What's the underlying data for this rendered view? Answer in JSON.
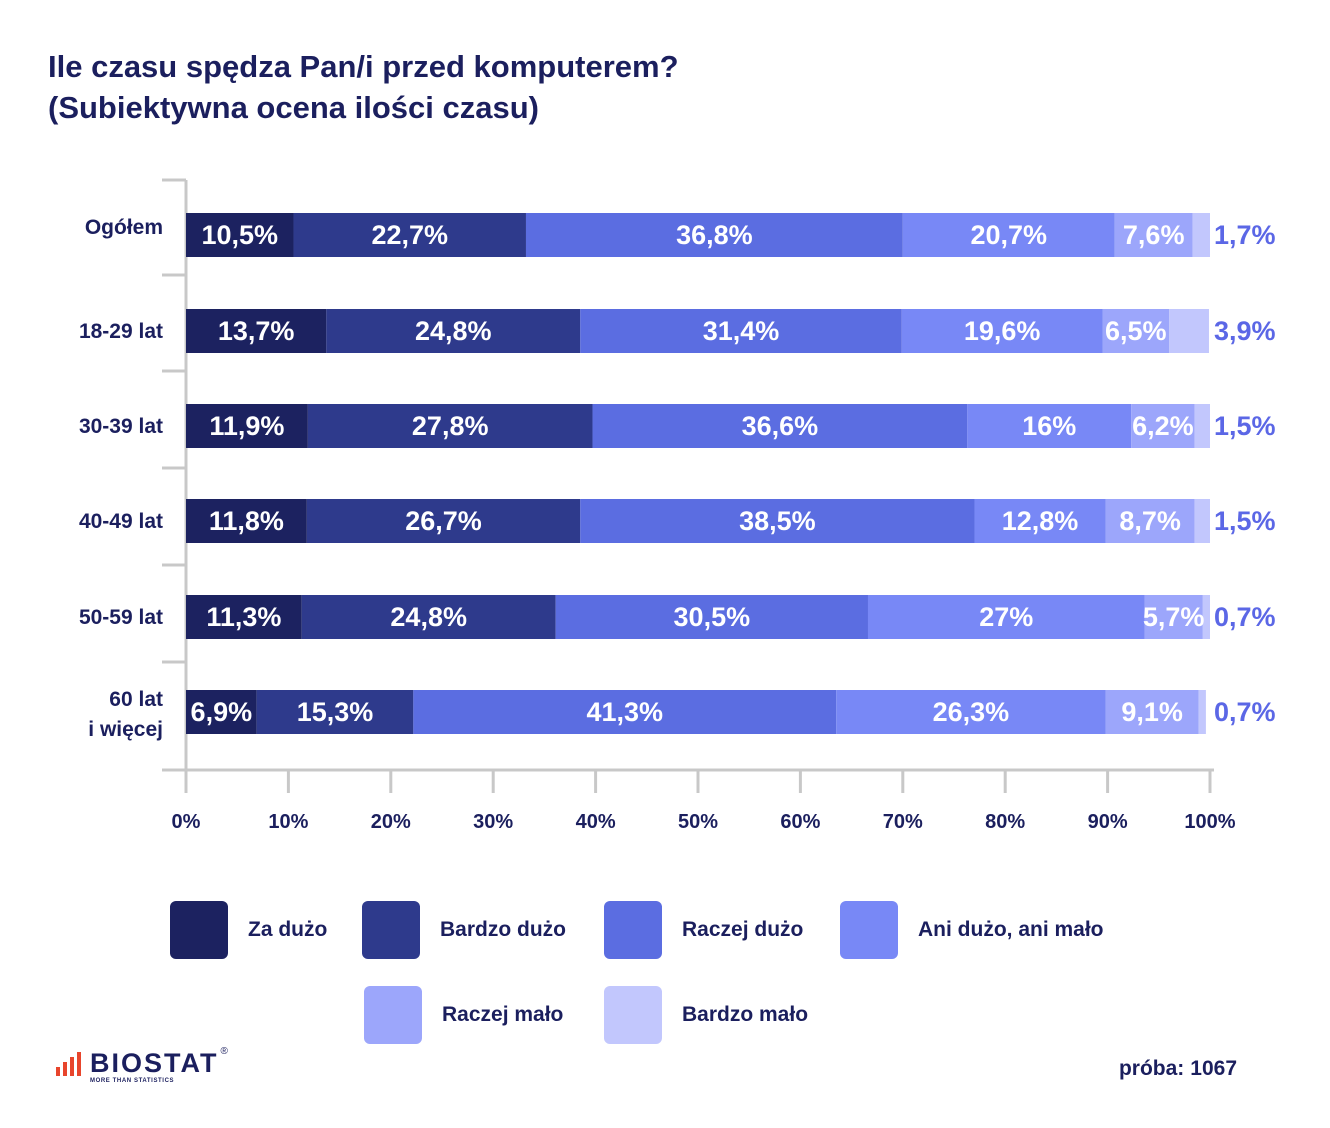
{
  "title": {
    "line1": "Ile czasu spędza Pan/i przed komputerem?",
    "line2": "(Subiektywna ocena ilości czasu)"
  },
  "colors": {
    "text": "#1b1f5e",
    "axis": "#c8c8c8",
    "outside_label": "#5b67e6",
    "logo_accent": "#e8452c"
  },
  "chart_data": {
    "type": "bar",
    "orientation": "horizontal",
    "stacked": true,
    "categories": [
      "Ogółem",
      "18-29 lat",
      "30-39 lat",
      "40-49 lat",
      "50-59 lat",
      "60 lat i więcej"
    ],
    "series": [
      {
        "name": "Za dużo",
        "color": "#1c2260",
        "values": [
          10.5,
          13.7,
          11.9,
          11.8,
          11.3,
          6.9
        ],
        "labels": [
          "10,5%",
          "13,7%",
          "11,9%",
          "11,8%",
          "11,3%",
          "6,9%"
        ]
      },
      {
        "name": "Bardzo dużo",
        "color": "#2e3a8c",
        "values": [
          22.7,
          24.8,
          27.8,
          26.7,
          24.8,
          15.3
        ],
        "labels": [
          "22,7%",
          "24,8%",
          "27,8%",
          "26,7%",
          "24,8%",
          "15,3%"
        ]
      },
      {
        "name": "Raczej dużo",
        "color": "#5b6de1",
        "values": [
          36.8,
          31.4,
          36.6,
          38.5,
          30.5,
          41.3
        ],
        "labels": [
          "36,8%",
          "31,4%",
          "36,6%",
          "38,5%",
          "30,5%",
          "41,3%"
        ]
      },
      {
        "name": "Ani dużo, ani mało",
        "color": "#7888f6",
        "values": [
          20.7,
          19.6,
          16,
          12.8,
          27,
          26.3
        ],
        "labels": [
          "20,7%",
          "19,6%",
          "16%",
          "12,8%",
          "27%",
          "26,3%"
        ]
      },
      {
        "name": "Raczej mało",
        "color": "#9ca6fb",
        "values": [
          7.6,
          6.5,
          6.2,
          8.7,
          5.7,
          9.1
        ],
        "labels": [
          "7,6%",
          "6,5%",
          "6,2%",
          "8,7%",
          "5,7%",
          "9,1%"
        ]
      },
      {
        "name": "Bardzo mało",
        "color": "#c2c7fd",
        "values": [
          1.7,
          3.9,
          1.5,
          1.5,
          0.7,
          0.7
        ],
        "labels": [
          "1,7%",
          "3,9%",
          "1,5%",
          "1,5%",
          "0,7%",
          "0,7%"
        ]
      }
    ],
    "xlim": [
      0,
      100
    ],
    "xticks": [
      "0%",
      "10%",
      "20%",
      "30%",
      "40%",
      "50%",
      "60%",
      "70%",
      "80%",
      "90%",
      "100%"
    ],
    "xlabel": "",
    "ylabel": "",
    "legend_position": "bottom"
  },
  "legend": [
    {
      "label": "Za dużo",
      "color": "#1c2260"
    },
    {
      "label": "Bardzo dużo",
      "color": "#2e3a8c"
    },
    {
      "label": "Raczej dużo",
      "color": "#5b6de1"
    },
    {
      "label": "Ani dużo, ani mało",
      "color": "#7888f6"
    },
    {
      "label": "Raczej mało",
      "color": "#9ca6fb"
    },
    {
      "label": "Bardzo mało",
      "color": "#c2c7fd"
    }
  ],
  "logo": {
    "name": "BIOSTAT",
    "tagline": "MORE THAN STATISTICS",
    "registered": "®"
  },
  "sample": {
    "label": "próba:",
    "value": "1067"
  }
}
